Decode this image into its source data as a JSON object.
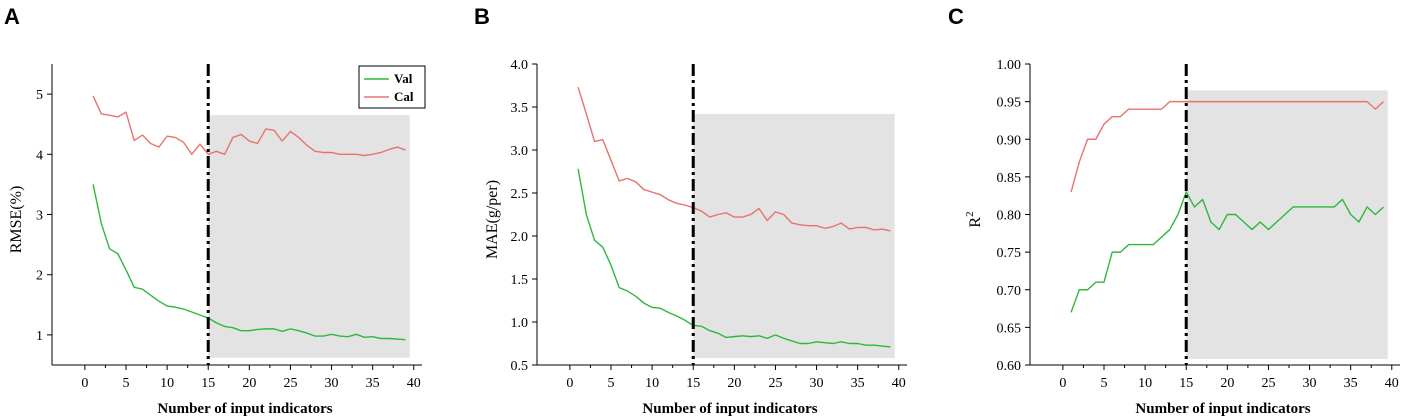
{
  "colors": {
    "val": "#2db83d",
    "cal": "#e8736e",
    "shade": "#e3e3e3",
    "axis": "#000000"
  },
  "chart_data": [
    {
      "panel_label": "A",
      "type": "line",
      "xlabel": "Number of input indicators",
      "ylabel": "RMSE(%)",
      "ylabel_sup": "",
      "xlim": [
        -4,
        41
      ],
      "ylim": [
        0.5,
        5.5
      ],
      "xticks": [
        0,
        5,
        10,
        15,
        20,
        25,
        30,
        35,
        40
      ],
      "yticks": [
        1,
        2,
        3,
        4,
        5
      ],
      "ytick_decimals": 0,
      "grid": false,
      "legend": {
        "position": "top-right",
        "entries": [
          "Val",
          "Cal"
        ]
      },
      "vline_x": 15,
      "shaded_region": {
        "x": [
          15,
          39.5
        ],
        "y": [
          0.62,
          4.65
        ]
      },
      "x": [
        1,
        2,
        3,
        4,
        5,
        6,
        7,
        8,
        9,
        10,
        11,
        12,
        13,
        14,
        15,
        16,
        17,
        18,
        19,
        20,
        21,
        22,
        23,
        24,
        25,
        26,
        27,
        28,
        29,
        30,
        31,
        32,
        33,
        34,
        35,
        36,
        37,
        38,
        39
      ],
      "series": [
        {
          "name": "Val",
          "color_key": "val",
          "values": [
            3.5,
            2.85,
            2.43,
            2.35,
            2.08,
            1.79,
            1.76,
            1.66,
            1.56,
            1.48,
            1.46,
            1.43,
            1.38,
            1.33,
            1.28,
            1.2,
            1.14,
            1.12,
            1.07,
            1.07,
            1.09,
            1.1,
            1.1,
            1.06,
            1.1,
            1.07,
            1.03,
            0.98,
            0.98,
            1.01,
            0.98,
            0.97,
            1.01,
            0.96,
            0.97,
            0.94,
            0.94,
            0.93,
            0.92
          ]
        },
        {
          "name": "Cal",
          "color_key": "cal",
          "values": [
            4.97,
            4.67,
            4.65,
            4.62,
            4.7,
            4.23,
            4.32,
            4.18,
            4.12,
            4.3,
            4.28,
            4.2,
            4.0,
            4.17,
            4.0,
            4.05,
            4.0,
            4.28,
            4.33,
            4.22,
            4.18,
            4.42,
            4.4,
            4.22,
            4.38,
            4.28,
            4.15,
            4.05,
            4.03,
            4.03,
            4.0,
            4.0,
            4.0,
            3.98,
            4.0,
            4.03,
            4.08,
            4.12,
            4.07
          ]
        }
      ]
    },
    {
      "panel_label": "B",
      "type": "line",
      "xlabel": "Number of input indicators",
      "ylabel": "MAE(g/per)",
      "ylabel_sup": "",
      "xlim": [
        -4,
        41
      ],
      "ylim": [
        0.5,
        4.0
      ],
      "xticks": [
        0,
        5,
        10,
        15,
        20,
        25,
        30,
        35,
        40
      ],
      "yticks": [
        0.5,
        1.0,
        1.5,
        2.0,
        2.5,
        3.0,
        3.5,
        4.0
      ],
      "ytick_decimals": 1,
      "grid": false,
      "legend": null,
      "vline_x": 15,
      "shaded_region": {
        "x": [
          15,
          39.5
        ],
        "y": [
          0.58,
          3.42
        ]
      },
      "x": [
        1,
        2,
        3,
        4,
        5,
        6,
        7,
        8,
        9,
        10,
        11,
        12,
        13,
        14,
        15,
        16,
        17,
        18,
        19,
        20,
        21,
        22,
        23,
        24,
        25,
        26,
        27,
        28,
        29,
        30,
        31,
        32,
        33,
        34,
        35,
        36,
        37,
        38,
        39
      ],
      "series": [
        {
          "name": "Val",
          "color_key": "val",
          "values": [
            2.78,
            2.25,
            1.95,
            1.87,
            1.66,
            1.4,
            1.36,
            1.3,
            1.22,
            1.17,
            1.16,
            1.11,
            1.07,
            1.02,
            0.96,
            0.95,
            0.9,
            0.87,
            0.82,
            0.83,
            0.84,
            0.83,
            0.84,
            0.81,
            0.85,
            0.81,
            0.78,
            0.75,
            0.75,
            0.77,
            0.76,
            0.75,
            0.77,
            0.75,
            0.75,
            0.73,
            0.73,
            0.72,
            0.71
          ]
        },
        {
          "name": "Cal",
          "color_key": "cal",
          "values": [
            3.73,
            3.42,
            3.1,
            3.12,
            2.88,
            2.64,
            2.67,
            2.63,
            2.54,
            2.51,
            2.48,
            2.42,
            2.38,
            2.36,
            2.33,
            2.29,
            2.22,
            2.25,
            2.27,
            2.22,
            2.22,
            2.25,
            2.32,
            2.18,
            2.28,
            2.25,
            2.15,
            2.13,
            2.12,
            2.12,
            2.09,
            2.11,
            2.15,
            2.08,
            2.1,
            2.1,
            2.07,
            2.08,
            2.06
          ]
        }
      ]
    },
    {
      "panel_label": "C",
      "type": "line",
      "xlabel": "Number of input indicators",
      "ylabel": "R",
      "ylabel_sup": "2",
      "xlim": [
        -4,
        41
      ],
      "ylim": [
        0.6,
        1.0
      ],
      "xticks": [
        0,
        5,
        10,
        15,
        20,
        25,
        30,
        35,
        40
      ],
      "yticks": [
        0.6,
        0.65,
        0.7,
        0.75,
        0.8,
        0.85,
        0.9,
        0.95,
        1.0
      ],
      "ytick_decimals": 2,
      "grid": false,
      "legend": null,
      "vline_x": 15,
      "shaded_region": {
        "x": [
          15,
          39.5
        ],
        "y": [
          0.608,
          0.965
        ]
      },
      "x": [
        1,
        2,
        3,
        4,
        5,
        6,
        7,
        8,
        9,
        10,
        11,
        12,
        13,
        14,
        15,
        16,
        17,
        18,
        19,
        20,
        21,
        22,
        23,
        24,
        25,
        26,
        27,
        28,
        29,
        30,
        31,
        32,
        33,
        34,
        35,
        36,
        37,
        38,
        39
      ],
      "series": [
        {
          "name": "Val",
          "color_key": "val",
          "values": [
            0.67,
            0.7,
            0.7,
            0.71,
            0.71,
            0.75,
            0.75,
            0.76,
            0.76,
            0.76,
            0.76,
            0.77,
            0.78,
            0.8,
            0.83,
            0.81,
            0.82,
            0.79,
            0.78,
            0.8,
            0.8,
            0.79,
            0.78,
            0.79,
            0.78,
            0.79,
            0.8,
            0.81,
            0.81,
            0.81,
            0.81,
            0.81,
            0.81,
            0.82,
            0.8,
            0.79,
            0.81,
            0.8,
            0.81
          ]
        },
        {
          "name": "Cal",
          "color_key": "cal",
          "values": [
            0.83,
            0.87,
            0.9,
            0.9,
            0.92,
            0.93,
            0.93,
            0.94,
            0.94,
            0.94,
            0.94,
            0.94,
            0.95,
            0.95,
            0.95,
            0.95,
            0.95,
            0.95,
            0.95,
            0.95,
            0.95,
            0.95,
            0.95,
            0.95,
            0.95,
            0.95,
            0.95,
            0.95,
            0.95,
            0.95,
            0.95,
            0.95,
            0.95,
            0.95,
            0.95,
            0.95,
            0.95,
            0.94,
            0.95
          ]
        }
      ]
    }
  ]
}
